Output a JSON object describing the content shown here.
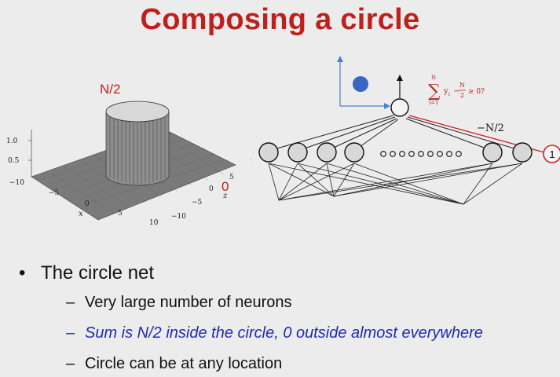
{
  "slide": {
    "title": "Composing a circle",
    "plot3d": {
      "peak_label": "N/2",
      "z_ticks": [
        "1.0",
        "0.5"
      ],
      "x_ticks": [
        "−10",
        "−5",
        "0",
        "5",
        "10"
      ],
      "x_axis": "x",
      "y_ticks": [
        "10",
        "5",
        "0",
        "−5",
        "−10"
      ],
      "y_axis": "z",
      "zero_label": "0"
    },
    "network": {
      "sum_formula_left": "∑",
      "sum_top": "N",
      "sum_bottom": "i=1",
      "sum_term": "y",
      "sum_sub": "i",
      "minus": "−",
      "frac_num": "N",
      "frac_den": "2",
      "comparison": "≥ 0?",
      "bias_label": "−N/2",
      "bias_input": "1",
      "hidden_count_drawn": 6,
      "ellipsis_dots": 9
    },
    "bullet": "The circle net",
    "subs": [
      "Very large number of neurons",
      "Sum is N/2 inside the circle, 0 outside almost everywhere",
      "Circle can be at any location"
    ],
    "colors": {
      "title": "#c0201c",
      "blue_text": "#1f2bb0",
      "accent_red": "#d02020",
      "axis_blue": "#4a7fd0",
      "dot_blue": "#3a66c0"
    }
  }
}
